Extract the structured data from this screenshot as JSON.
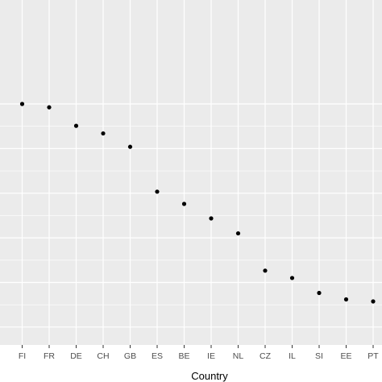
{
  "chart_data": {
    "type": "scatter",
    "categories": [
      "",
      "FI",
      "FR",
      "DE",
      "CH",
      "GB",
      "ES",
      "BE",
      "IE",
      "NL",
      "CZ",
      "IL",
      "SI",
      "EE",
      "PT"
    ],
    "series": [
      {
        "x": [
          "FI",
          "FR",
          "DE",
          "CH",
          "GB",
          "ES",
          "BE",
          "IE",
          "NL",
          "CZ",
          "IL",
          "SI",
          "EE",
          "PT"
        ],
        "values": [
          1.0,
          0.985,
          0.902,
          0.868,
          0.808,
          0.607,
          0.552,
          0.487,
          0.42,
          0.253,
          0.22,
          0.153,
          0.124,
          0.115
        ]
      }
    ],
    "xlabel": "Country",
    "ylabel": "",
    "ylim": [
      0,
      1.17
    ],
    "grid": true,
    "point_color": "#000000",
    "panel_background": "#ebebeb",
    "grid_color": "#ffffff"
  }
}
